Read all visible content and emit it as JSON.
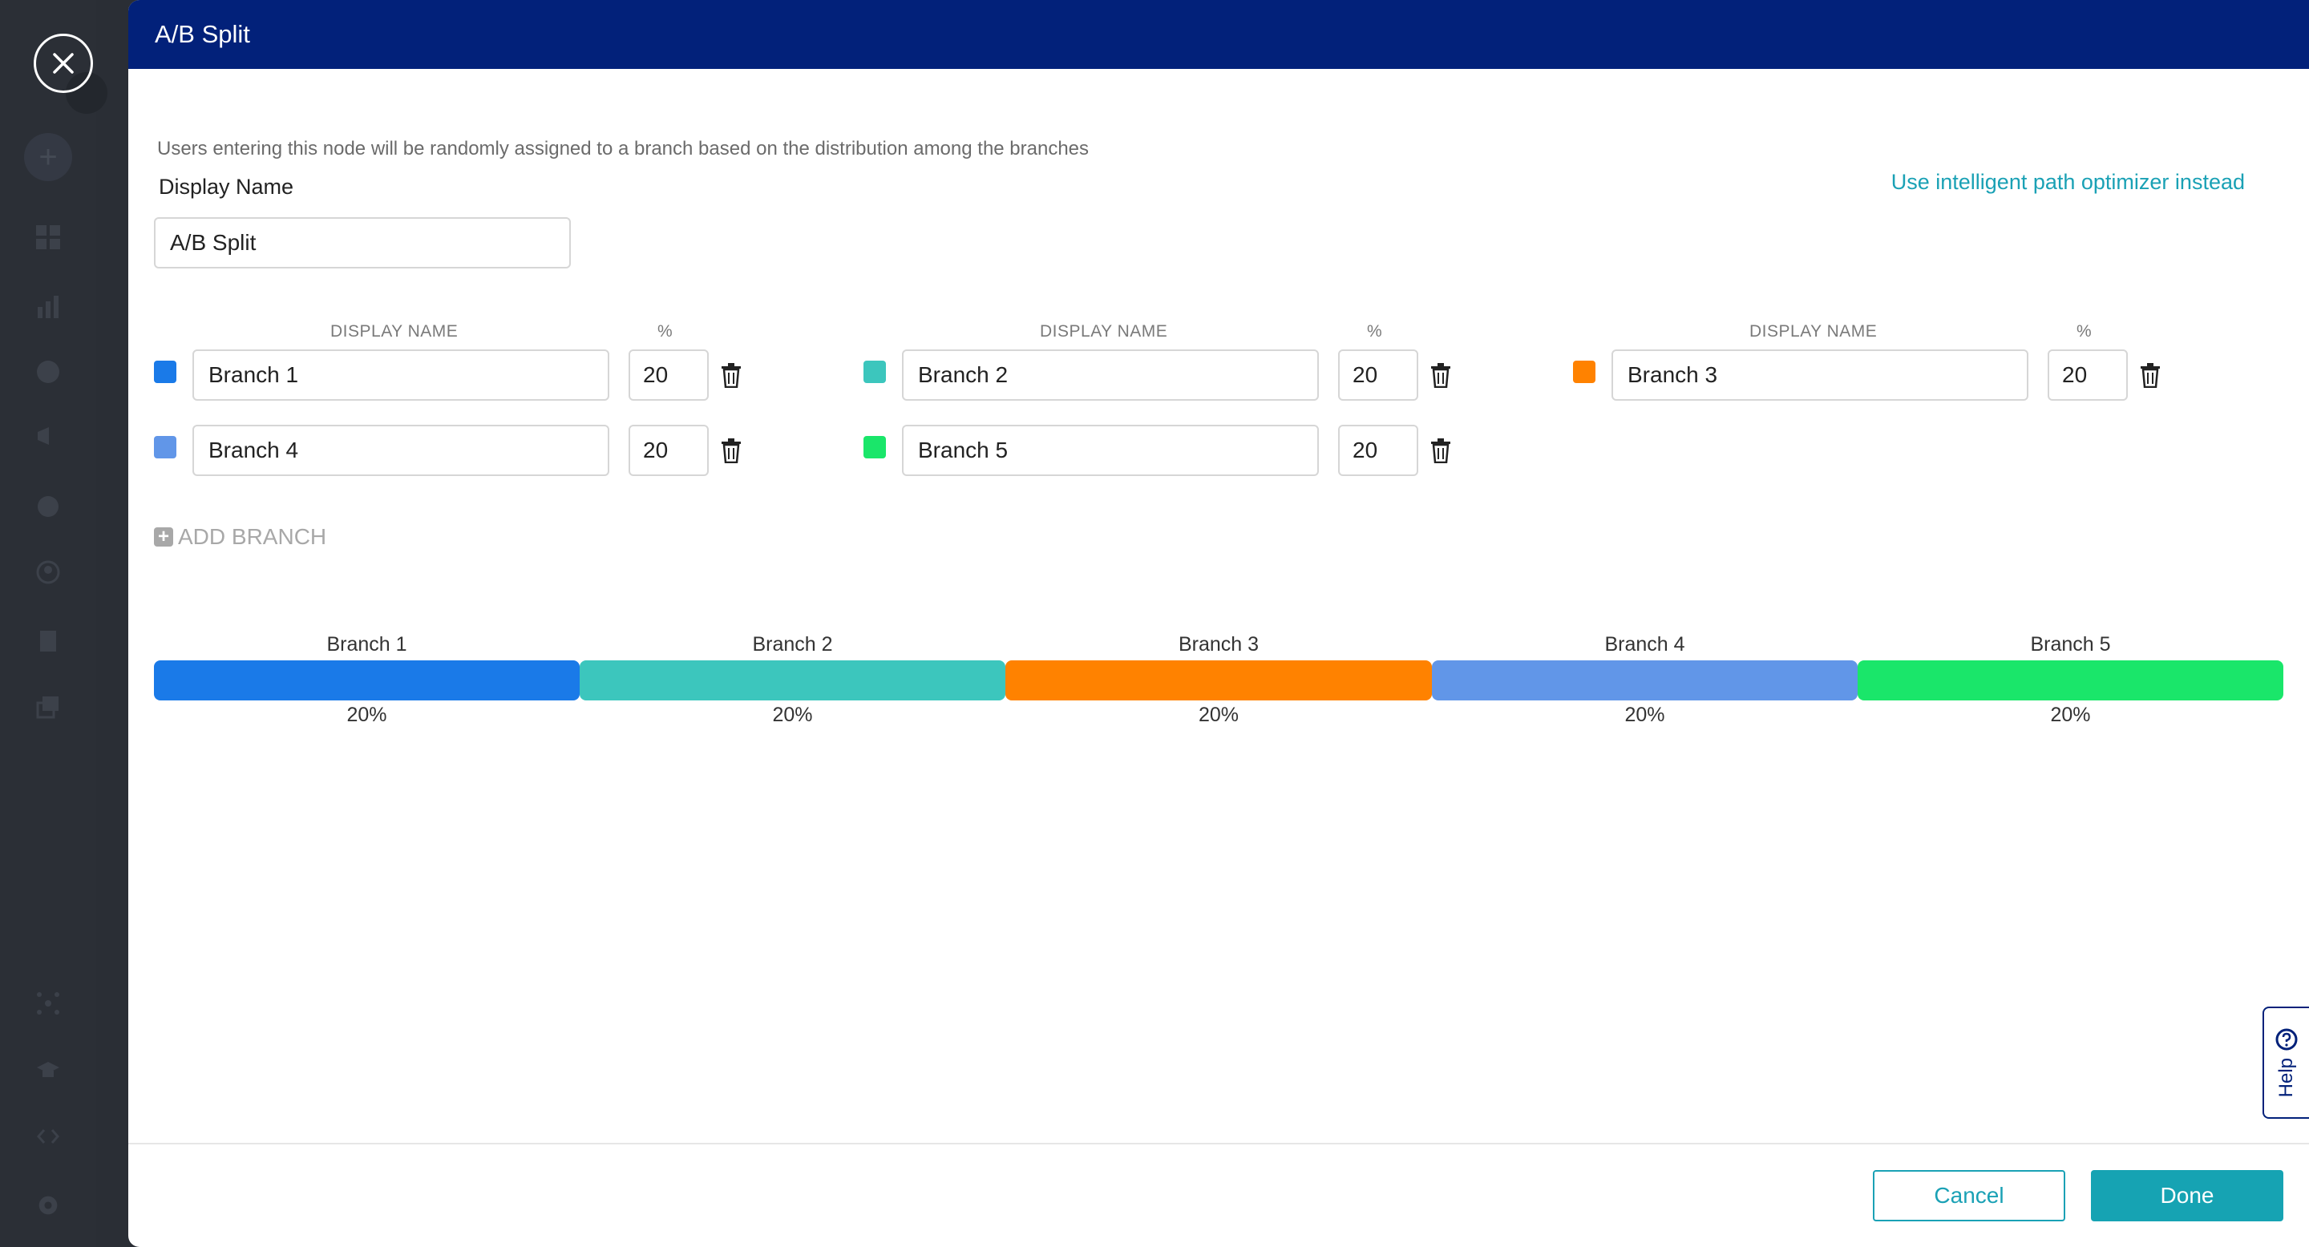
{
  "modal": {
    "title": "A/B Split",
    "description": "Users entering this node will be randomly assigned to a branch based on the distribution among the branches",
    "optimizer_link": "Use intelligent path optimizer instead",
    "display_name_label": "Display Name",
    "display_name_value": "A/B Split"
  },
  "columns": {
    "name_header": "DISPLAY NAME",
    "pct_header": "%"
  },
  "branches": [
    {
      "name": "Branch 1",
      "percent": "20",
      "color": "#1a7ae8"
    },
    {
      "name": "Branch 2",
      "percent": "20",
      "color": "#3cc6bd"
    },
    {
      "name": "Branch 3",
      "percent": "20",
      "color": "#ff8200"
    },
    {
      "name": "Branch 4",
      "percent": "20",
      "color": "#6196e8"
    },
    {
      "name": "Branch 5",
      "percent": "20",
      "color": "#1ae66a"
    }
  ],
  "add_branch_label": "ADD BRANCH",
  "distribution": [
    {
      "label": "Branch 1",
      "pct": "20%",
      "value": 20
    },
    {
      "label": "Branch 2",
      "pct": "20%",
      "value": 20
    },
    {
      "label": "Branch 3",
      "pct": "20%",
      "value": 20
    },
    {
      "label": "Branch 4",
      "pct": "20%",
      "value": 20
    },
    {
      "label": "Branch 5",
      "pct": "20%",
      "value": 20
    }
  ],
  "help_label": "Help",
  "footer": {
    "cancel_label": "Cancel",
    "done_label": "Done"
  },
  "colors": {
    "header_bg": "#02217a",
    "accent": "#16a3b3"
  }
}
